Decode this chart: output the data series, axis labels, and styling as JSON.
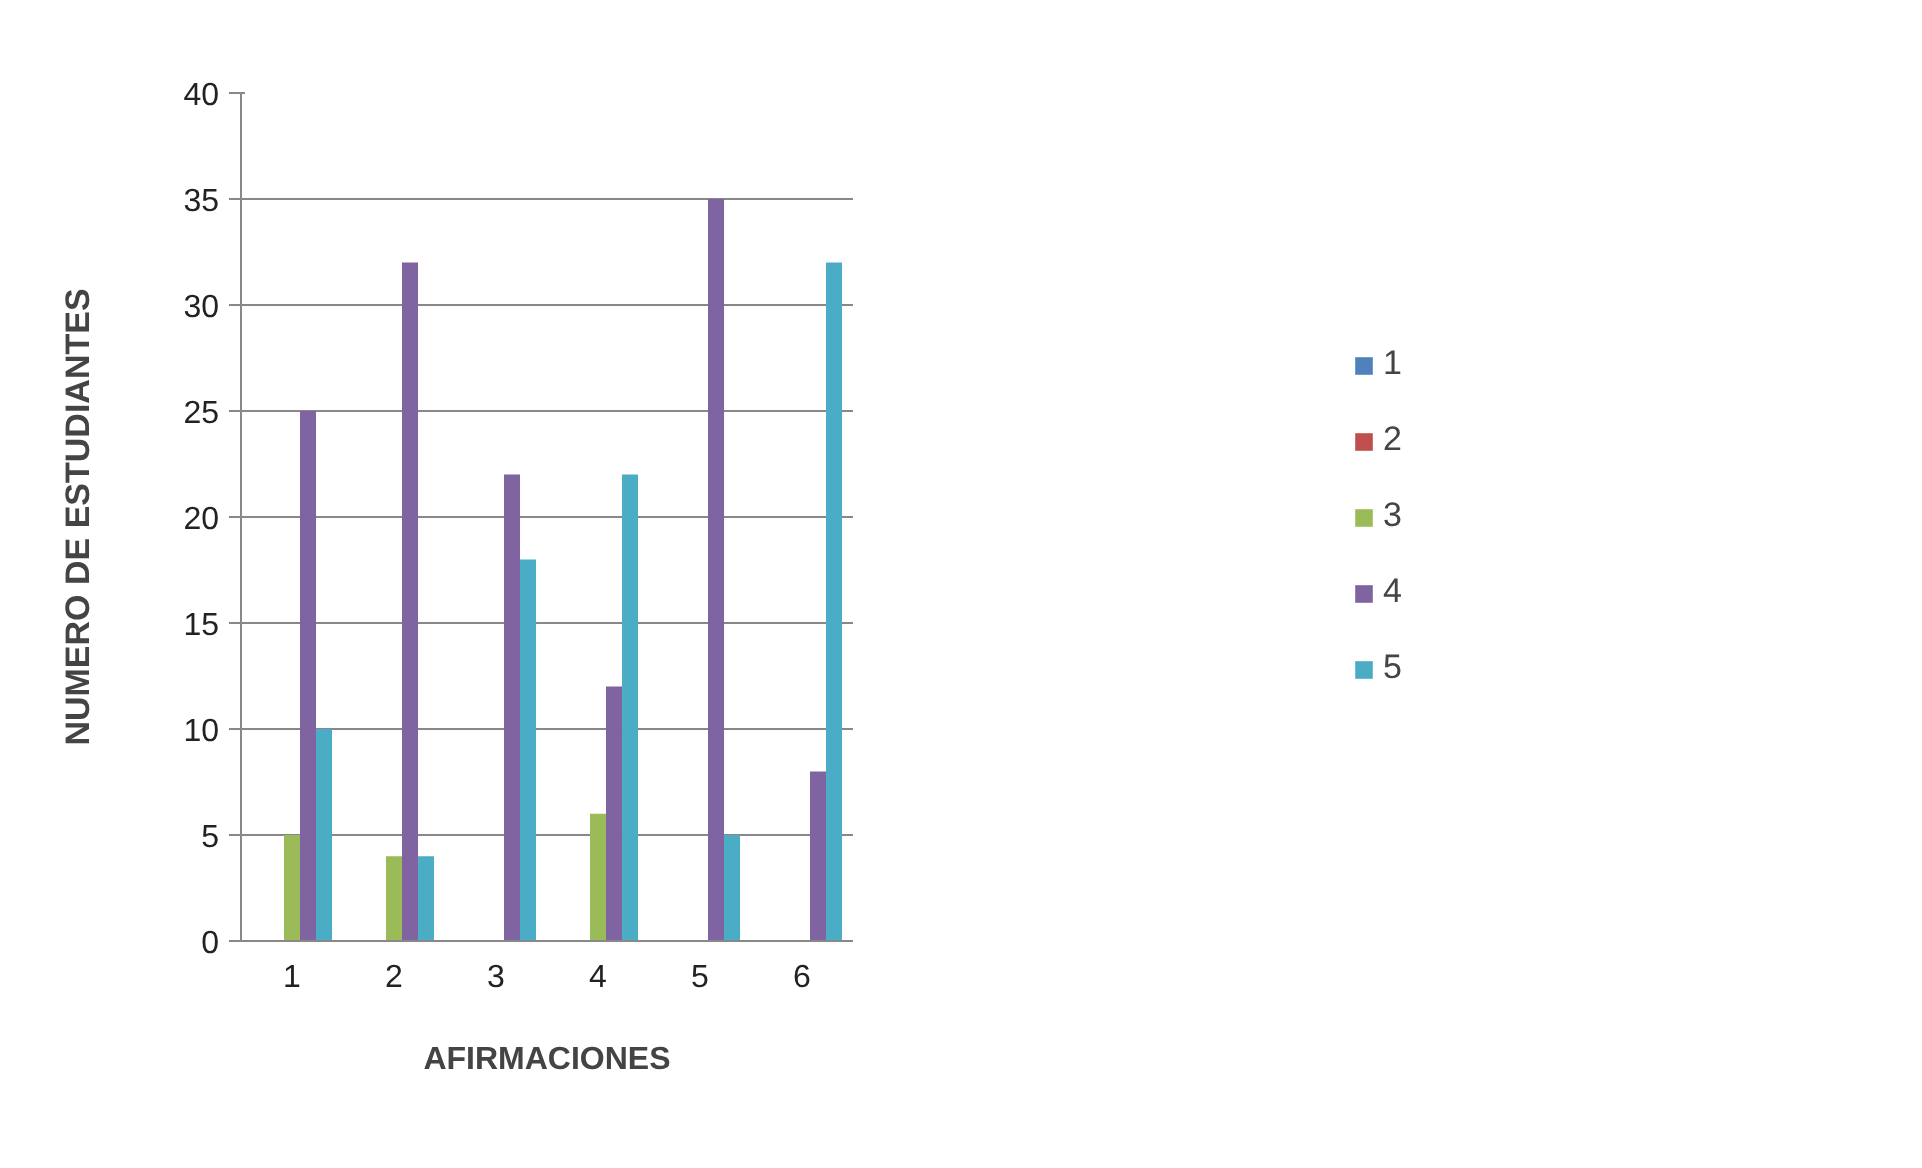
{
  "chart_data": {
    "type": "bar",
    "xlabel": "AFIRMACIONES",
    "ylabel": "NUMERO DE ESTUDIANTES",
    "categories": [
      "1",
      "2",
      "3",
      "4",
      "5",
      "6"
    ],
    "series": [
      {
        "name": "1",
        "color": "#4f81bd",
        "values": [
          0,
          0,
          0,
          0,
          0,
          0
        ]
      },
      {
        "name": "2",
        "color": "#c0504d",
        "values": [
          0,
          0,
          0,
          0,
          0,
          0
        ]
      },
      {
        "name": "3",
        "color": "#9bbb59",
        "values": [
          5,
          4,
          0,
          6,
          0,
          0
        ]
      },
      {
        "name": "4",
        "color": "#8064a2",
        "values": [
          25,
          32,
          22,
          12,
          35,
          8
        ]
      },
      {
        "name": "5",
        "color": "#4bacc6",
        "values": [
          10,
          4,
          18,
          22,
          5,
          32
        ]
      }
    ],
    "ylim": [
      0,
      40
    ],
    "yticks": [
      0,
      5,
      10,
      15,
      20,
      25,
      30,
      35,
      40
    ],
    "grid": "y",
    "legend": "right"
  }
}
